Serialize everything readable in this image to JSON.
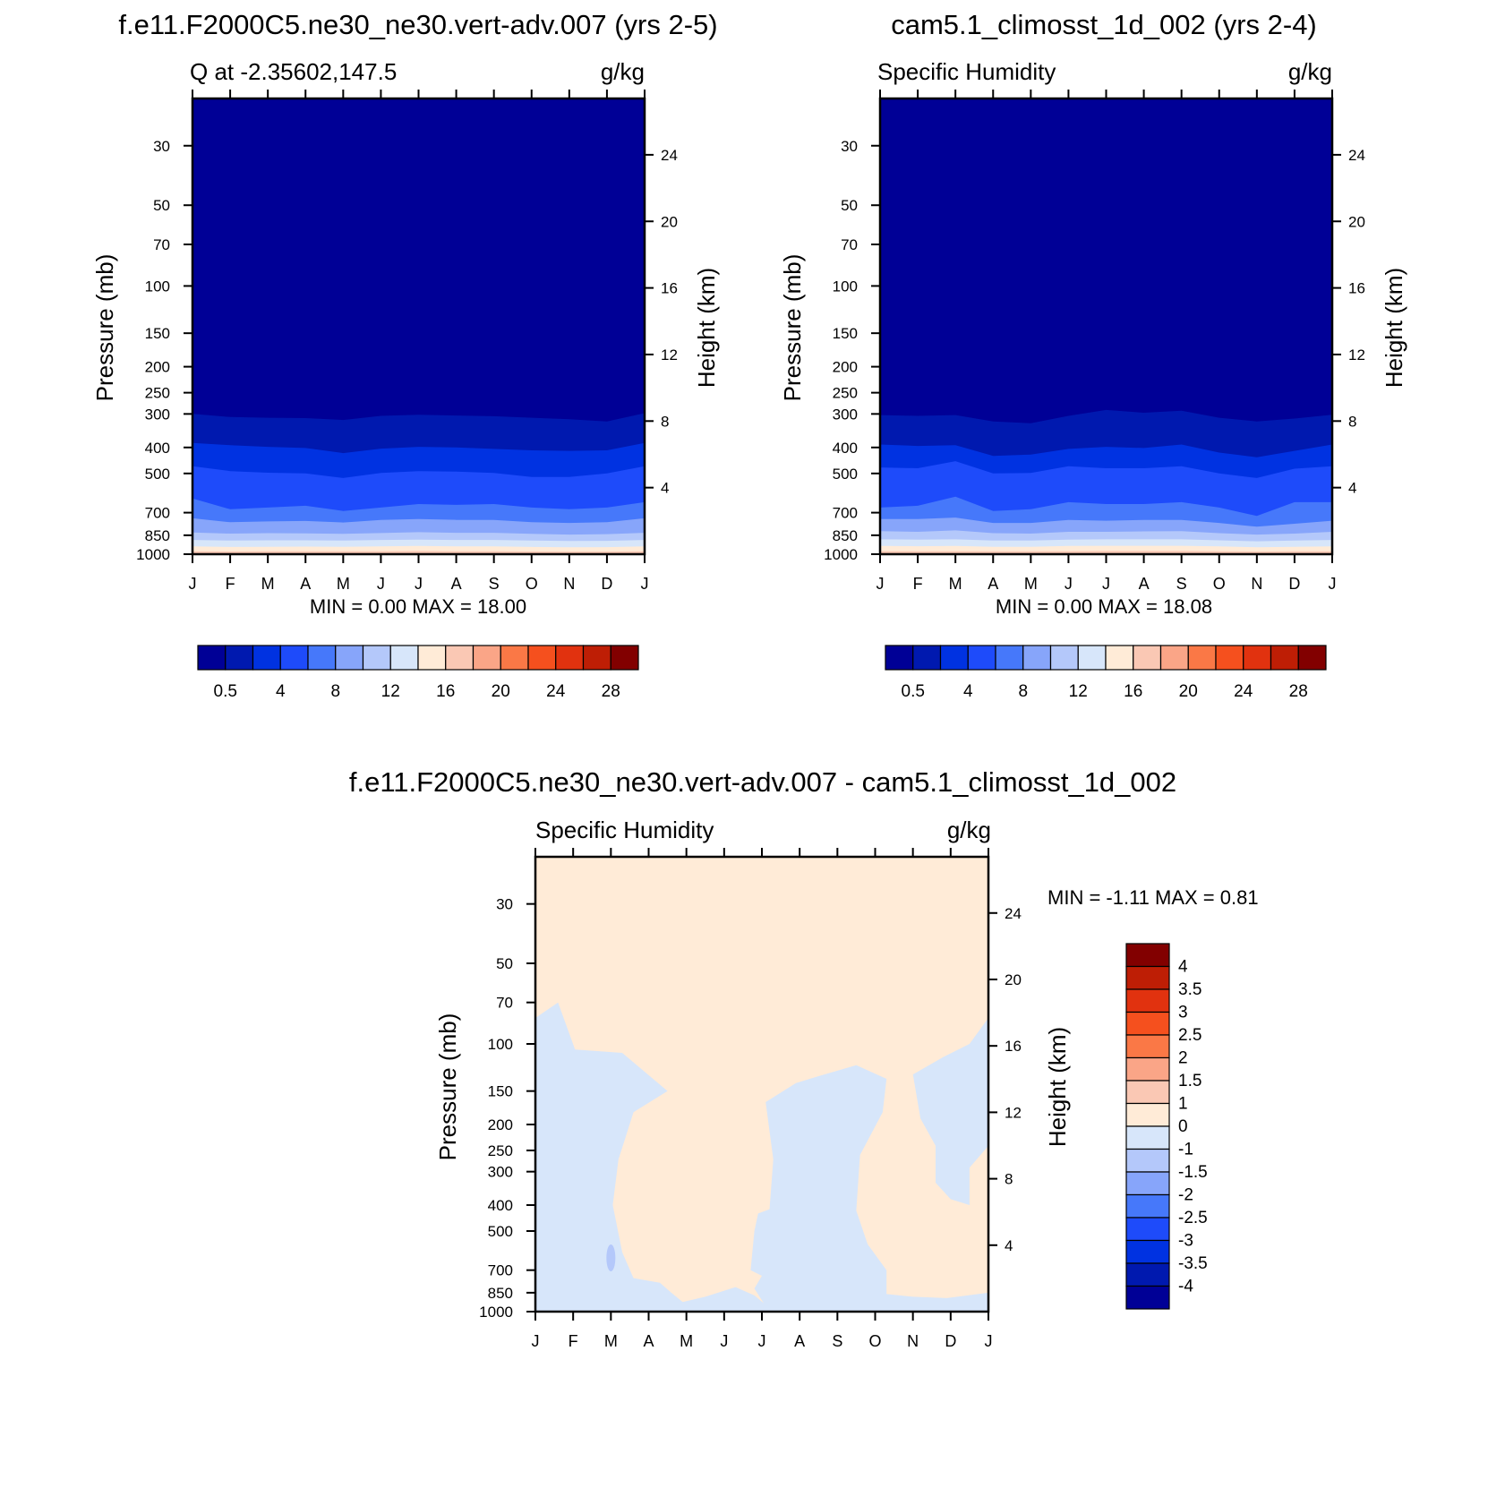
{
  "colors": {
    "abs": [
      "#000096",
      "#0019AF",
      "#0032E1",
      "#1E4BFA",
      "#4678FA",
      "#87A5FA",
      "#B4C8FA",
      "#D7E6FA",
      "#FFEBD7",
      "#FAC8B4",
      "#FAA587",
      "#FA7846",
      "#F5501E",
      "#E1320F",
      "#BE1E05",
      "#820000"
    ],
    "diff": [
      "#000096",
      "#0019AF",
      "#0032E1",
      "#1E4BFA",
      "#4678FA",
      "#87A5FA",
      "#B4C8FA",
      "#D7E6FA",
      "#FFEBD7",
      "#FAC8B4",
      "#FAA587",
      "#FA7846",
      "#F5501E",
      "#E1320F",
      "#BE1E05",
      "#820000"
    ]
  },
  "chart_data": [
    {
      "id": "model1",
      "type": "heatmap",
      "title": "f.e11.F2000C5.ne30_ne30.vert-adv.007 (yrs 2-5)",
      "left_string": "Q at -2.35602,147.5",
      "right_string": "g/kg",
      "ylabel": "Pressure (mb)",
      "ylabel_right": "Height (km)",
      "x_ticks": [
        "J",
        "F",
        "M",
        "A",
        "M",
        "J",
        "J",
        "A",
        "S",
        "O",
        "N",
        "D",
        "J"
      ],
      "y_ticks": [
        30,
        50,
        70,
        100,
        150,
        200,
        250,
        300,
        400,
        500,
        700,
        850,
        1000
      ],
      "y_ticks_right": [
        24,
        20,
        16,
        12,
        8,
        4
      ],
      "ylim": [
        20,
        1000
      ],
      "y_scale": "log",
      "min_max": "MIN =   0.00 MAX =  18.00",
      "colorbar_labels": [
        "0.5",
        "4",
        "8",
        "12",
        "16",
        "20",
        "24",
        "28"
      ],
      "contours_mb": [
        [
          300,
          308,
          310,
          311,
          316,
          305,
          302,
          304,
          306,
          310,
          314,
          320,
          298
        ],
        [
          385,
          392,
          398,
          402,
          420,
          404,
          398,
          400,
          405,
          410,
          412,
          410,
          385
        ],
        [
          470,
          490,
          497,
          500,
          520,
          498,
          490,
          492,
          498,
          515,
          515,
          500,
          470
        ],
        [
          620,
          680,
          670,
          660,
          690,
          670,
          650,
          655,
          650,
          670,
          680,
          670,
          640
        ],
        [
          735,
          760,
          755,
          752,
          762,
          745,
          740,
          745,
          745,
          760,
          765,
          760,
          735
        ],
        [
          830,
          838,
          835,
          836,
          840,
          834,
          828,
          832,
          832,
          840,
          845,
          842,
          832
        ],
        [
          885,
          890,
          888,
          888,
          890,
          885,
          882,
          885,
          885,
          890,
          893,
          892,
          885
        ],
        [
          935,
          940,
          938,
          937,
          938,
          935,
          932,
          935,
          935,
          940,
          942,
          941,
          935
        ],
        [
          975,
          977,
          976,
          976,
          976,
          975,
          973,
          975,
          975,
          977,
          978,
          978,
          975
        ]
      ]
    },
    {
      "id": "model2",
      "type": "heatmap",
      "title": "cam5.1_climosst_1d_002 (yrs 2-4)",
      "left_string": "Specific Humidity",
      "right_string": "g/kg",
      "ylabel": "Pressure (mb)",
      "ylabel_right": "Height (km)",
      "x_ticks": [
        "J",
        "F",
        "M",
        "A",
        "M",
        "J",
        "J",
        "A",
        "S",
        "O",
        "N",
        "D",
        "J"
      ],
      "y_ticks": [
        30,
        50,
        70,
        100,
        150,
        200,
        250,
        300,
        400,
        500,
        700,
        850,
        1000
      ],
      "y_ticks_right": [
        24,
        20,
        16,
        12,
        8,
        4
      ],
      "ylim": [
        20,
        1000
      ],
      "y_scale": "log",
      "min_max": "MIN =   0.00 MAX =  18.08",
      "colorbar_labels": [
        "0.5",
        "4",
        "8",
        "12",
        "16",
        "20",
        "24",
        "28"
      ],
      "contours_mb": [
        [
          303,
          305,
          303,
          320,
          325,
          305,
          290,
          297,
          292,
          310,
          320,
          312,
          302
        ],
        [
          390,
          395,
          392,
          430,
          425,
          405,
          398,
          402,
          390,
          418,
          435,
          412,
          390
        ],
        [
          475,
          478,
          450,
          500,
          498,
          470,
          478,
          478,
          470,
          500,
          520,
          480,
          470
        ],
        [
          670,
          660,
          610,
          690,
          680,
          640,
          650,
          650,
          640,
          670,
          720,
          640,
          640
        ],
        [
          740,
          740,
          730,
          765,
          765,
          745,
          750,
          745,
          745,
          765,
          790,
          770,
          750
        ],
        [
          820,
          825,
          815,
          835,
          838,
          825,
          825,
          822,
          820,
          835,
          845,
          838,
          825
        ],
        [
          880,
          882,
          880,
          890,
          890,
          882,
          880,
          880,
          880,
          888,
          895,
          890,
          885
        ],
        [
          932,
          934,
          932,
          938,
          938,
          932,
          930,
          930,
          930,
          935,
          942,
          938,
          935
        ],
        [
          974,
          975,
          974,
          976,
          976,
          974,
          973,
          973,
          973,
          975,
          978,
          976,
          975
        ]
      ]
    },
    {
      "id": "difference",
      "type": "heatmap",
      "title": "f.e11.F2000C5.ne30_ne30.vert-adv.007 - cam5.1_climosst_1d_002",
      "left_string": "Specific Humidity",
      "right_string": "g/kg",
      "ylabel": "Pressure (mb)",
      "ylabel_right": "Height (km)",
      "x_ticks": [
        "J",
        "F",
        "M",
        "A",
        "M",
        "J",
        "J",
        "A",
        "S",
        "O",
        "N",
        "D",
        "J"
      ],
      "y_ticks": [
        30,
        50,
        70,
        100,
        150,
        200,
        250,
        300,
        400,
        500,
        700,
        850,
        1000
      ],
      "y_ticks_right": [
        24,
        20,
        16,
        12,
        8,
        4
      ],
      "ylim": [
        20,
        1000
      ],
      "y_scale": "log",
      "min_max": "MIN =  -1.11 MAX =   0.81",
      "colorbar_labels": [
        "4",
        "3.5",
        "3",
        "2.5",
        "2",
        "1.5",
        "1",
        "0",
        "-1",
        "-1.5",
        "-2",
        "-2.5",
        "-3",
        "-3.5",
        "-4"
      ],
      "background_class": "0 to 1",
      "negative_region_class": "-1 to 0",
      "negative_region_mb": [
        [
          0,
          80
        ],
        [
          0.6,
          70
        ],
        [
          1.05,
          105
        ],
        [
          2.3,
          108
        ],
        [
          3.5,
          150
        ],
        [
          2.6,
          180
        ],
        [
          2.2,
          270
        ],
        [
          2.05,
          400
        ],
        [
          2.3,
          600
        ],
        [
          2.6,
          750
        ],
        [
          3.3,
          780
        ],
        [
          3.6,
          850
        ],
        [
          3.9,
          920
        ],
        [
          4.5,
          880
        ],
        [
          5.3,
          810
        ],
        [
          5.8,
          870
        ],
        [
          6.05,
          930
        ],
        [
          5.8,
          820
        ],
        [
          6.0,
          735
        ],
        [
          5.7,
          700
        ],
        [
          5.8,
          500
        ],
        [
          5.9,
          430
        ],
        [
          6.5,
          400
        ],
        [
          7.0,
          430
        ],
        [
          7.2,
          520
        ],
        [
          6.9,
          560
        ],
        [
          6.5,
          430
        ],
        [
          6.2,
          420
        ],
        [
          6.3,
          270
        ],
        [
          6.1,
          165
        ],
        [
          6.9,
          140
        ],
        [
          7.5,
          132
        ],
        [
          8.5,
          120
        ],
        [
          9.3,
          135
        ],
        [
          9.2,
          180
        ],
        [
          8.6,
          260
        ],
        [
          8.5,
          420
        ],
        [
          8.8,
          560
        ],
        [
          9.3,
          700
        ],
        [
          9.3,
          860
        ],
        [
          10.0,
          880
        ],
        [
          10.9,
          890
        ],
        [
          12,
          850
        ],
        [
          12,
          1000
        ],
        [
          0,
          1000
        ]
      ],
      "negative_region_east_mb": [
        [
          10.8,
          112
        ],
        [
          11.5,
          100
        ],
        [
          12,
          80
        ],
        [
          12,
          240
        ],
        [
          11.5,
          290
        ],
        [
          11.5,
          400
        ],
        [
          11.0,
          380
        ],
        [
          10.6,
          330
        ],
        [
          10.6,
          240
        ],
        [
          10.2,
          190
        ],
        [
          10.0,
          130
        ]
      ],
      "positive_lens_center": [
        11.1,
        560
      ],
      "negative_small_patch_center": [
        2.0,
        630
      ],
      "negative_small_patch_class": "-1.5 to -1"
    }
  ]
}
